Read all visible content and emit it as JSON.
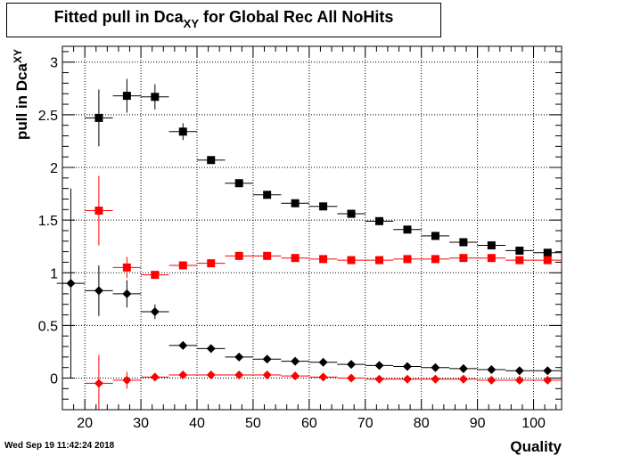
{
  "title": {
    "main": "Fitted pull in Dca",
    "sub": "XY",
    "rest": " for Global Rec All NoHits"
  },
  "timestamp": "Wed Sep 19 11:42:24 2018",
  "chart_data": {
    "type": "scatter",
    "title": "Fitted pull in Dca_XY for Global Rec All NoHits",
    "xlabel": "Quality",
    "ylabel": "pull in Dca_XY",
    "xlim": [
      16,
      105
    ],
    "ylim": [
      -0.3,
      3.15
    ],
    "grid": true,
    "x_ticks": [
      20,
      30,
      40,
      50,
      60,
      70,
      80,
      90,
      100
    ],
    "y_ticks": [
      0,
      0.5,
      1,
      1.5,
      2,
      2.5,
      3
    ],
    "y_tick_labels": [
      "0",
      "0.5",
      "1",
      "1.5",
      "2",
      "2.5",
      "3"
    ],
    "series": [
      {
        "marker": "square",
        "color": "#000000",
        "points": [
          {
            "x": 22.5,
            "y": 2.47,
            "yerr": 0.27
          },
          {
            "x": 27.5,
            "y": 2.68,
            "yerr": 0.16
          },
          {
            "x": 32.5,
            "y": 2.67,
            "yerr": 0.12
          },
          {
            "x": 37.5,
            "y": 2.34,
            "yerr": 0.08
          },
          {
            "x": 42.5,
            "y": 2.07,
            "yerr": 0.03
          },
          {
            "x": 47.5,
            "y": 1.85,
            "yerr": 0.02
          },
          {
            "x": 52.5,
            "y": 1.74,
            "yerr": 0.02
          },
          {
            "x": 57.5,
            "y": 1.66,
            "yerr": 0.02
          },
          {
            "x": 62.5,
            "y": 1.63,
            "yerr": 0.02
          },
          {
            "x": 67.5,
            "y": 1.56,
            "yerr": 0.02
          },
          {
            "x": 72.5,
            "y": 1.49,
            "yerr": 0.02
          },
          {
            "x": 77.5,
            "y": 1.41,
            "yerr": 0.02
          },
          {
            "x": 82.5,
            "y": 1.35,
            "yerr": 0.02
          },
          {
            "x": 87.5,
            "y": 1.29,
            "yerr": 0.02
          },
          {
            "x": 92.5,
            "y": 1.26,
            "yerr": 0.02
          },
          {
            "x": 97.5,
            "y": 1.21,
            "yerr": 0.02
          },
          {
            "x": 102.5,
            "y": 1.19,
            "yerr": 0.02
          }
        ]
      },
      {
        "marker": "square",
        "color": "#ff0000",
        "points": [
          {
            "x": 22.5,
            "y": 1.59,
            "yerr": 0.33
          },
          {
            "x": 27.5,
            "y": 1.05,
            "yerr": 0.1
          },
          {
            "x": 32.5,
            "y": 0.98,
            "yerr": 0.02
          },
          {
            "x": 37.5,
            "y": 1.07,
            "yerr": 0.02
          },
          {
            "x": 42.5,
            "y": 1.09,
            "yerr": 0.02
          },
          {
            "x": 47.5,
            "y": 1.16,
            "yerr": 0.01
          },
          {
            "x": 52.5,
            "y": 1.16,
            "yerr": 0.01
          },
          {
            "x": 57.5,
            "y": 1.14,
            "yerr": 0.01
          },
          {
            "x": 62.5,
            "y": 1.13,
            "yerr": 0.01
          },
          {
            "x": 67.5,
            "y": 1.12,
            "yerr": 0.01
          },
          {
            "x": 72.5,
            "y": 1.12,
            "yerr": 0.01
          },
          {
            "x": 77.5,
            "y": 1.13,
            "yerr": 0.01
          },
          {
            "x": 82.5,
            "y": 1.13,
            "yerr": 0.01
          },
          {
            "x": 87.5,
            "y": 1.14,
            "yerr": 0.01
          },
          {
            "x": 92.5,
            "y": 1.14,
            "yerr": 0.01
          },
          {
            "x": 97.5,
            "y": 1.12,
            "yerr": 0.01
          },
          {
            "x": 102.5,
            "y": 1.12,
            "yerr": 0.01
          }
        ]
      },
      {
        "marker": "diamond",
        "color": "#000000",
        "points": [
          {
            "x": 17.5,
            "y": 0.9,
            "yerr": 0.9
          },
          {
            "x": 22.5,
            "y": 0.83,
            "yerr": 0.24
          },
          {
            "x": 27.5,
            "y": 0.8,
            "yerr": 0.13
          },
          {
            "x": 32.5,
            "y": 0.63,
            "yerr": 0.07
          },
          {
            "x": 37.5,
            "y": 0.31,
            "yerr": 0.02
          },
          {
            "x": 42.5,
            "y": 0.28,
            "yerr": 0.02
          },
          {
            "x": 47.5,
            "y": 0.2,
            "yerr": 0.01
          },
          {
            "x": 52.5,
            "y": 0.18,
            "yerr": 0.01
          },
          {
            "x": 57.5,
            "y": 0.16,
            "yerr": 0.01
          },
          {
            "x": 62.5,
            "y": 0.15,
            "yerr": 0.01
          },
          {
            "x": 67.5,
            "y": 0.13,
            "yerr": 0.01
          },
          {
            "x": 72.5,
            "y": 0.12,
            "yerr": 0.01
          },
          {
            "x": 77.5,
            "y": 0.11,
            "yerr": 0.01
          },
          {
            "x": 82.5,
            "y": 0.1,
            "yerr": 0.01
          },
          {
            "x": 87.5,
            "y": 0.09,
            "yerr": 0.01
          },
          {
            "x": 92.5,
            "y": 0.08,
            "yerr": 0.01
          },
          {
            "x": 97.5,
            "y": 0.07,
            "yerr": 0.01
          },
          {
            "x": 102.5,
            "y": 0.07,
            "yerr": 0.01
          }
        ]
      },
      {
        "marker": "diamond",
        "color": "#ff0000",
        "points": [
          {
            "x": 22.5,
            "y": -0.05,
            "yerr": 0.27
          },
          {
            "x": 27.5,
            "y": -0.02,
            "yerr": 0.08
          },
          {
            "x": 32.5,
            "y": 0.01,
            "yerr": 0.02
          },
          {
            "x": 37.5,
            "y": 0.03,
            "yerr": 0.01
          },
          {
            "x": 42.5,
            "y": 0.03,
            "yerr": 0.01
          },
          {
            "x": 47.5,
            "y": 0.03,
            "yerr": 0.01
          },
          {
            "x": 52.5,
            "y": 0.03,
            "yerr": 0.01
          },
          {
            "x": 57.5,
            "y": 0.02,
            "yerr": 0.01
          },
          {
            "x": 62.5,
            "y": 0.01,
            "yerr": 0.01
          },
          {
            "x": 67.5,
            "y": 0.0,
            "yerr": 0.01
          },
          {
            "x": 72.5,
            "y": -0.01,
            "yerr": 0.01
          },
          {
            "x": 77.5,
            "y": -0.01,
            "yerr": 0.01
          },
          {
            "x": 82.5,
            "y": -0.01,
            "yerr": 0.01
          },
          {
            "x": 87.5,
            "y": -0.01,
            "yerr": 0.01
          },
          {
            "x": 92.5,
            "y": -0.02,
            "yerr": 0.01
          },
          {
            "x": 97.5,
            "y": -0.02,
            "yerr": 0.01
          },
          {
            "x": 102.5,
            "y": -0.02,
            "yerr": 0.01
          }
        ]
      }
    ]
  }
}
